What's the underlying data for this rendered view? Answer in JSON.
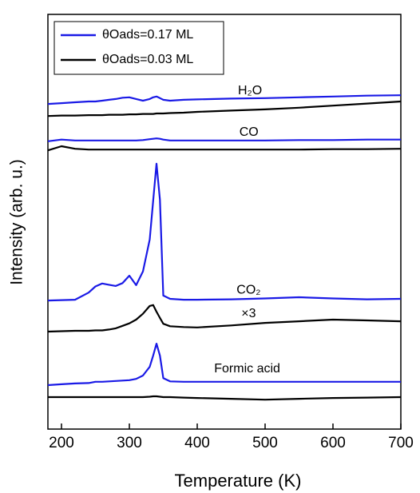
{
  "chart_data": {
    "type": "line",
    "xlabel": "Temperature (K)",
    "ylabel": "Intensity (arb. u.)",
    "x": [
      180,
      200,
      220,
      240,
      250,
      260,
      270,
      280,
      290,
      300,
      310,
      320,
      330,
      335,
      340,
      345,
      350,
      360,
      380,
      400,
      450,
      500,
      550,
      600,
      650,
      700
    ],
    "xlim": [
      180,
      700
    ],
    "xticks": [
      200,
      300,
      400,
      500,
      600,
      700
    ],
    "ylim": [
      0,
      100
    ],
    "legend": "upper left",
    "series": [
      {
        "name": "θOads=0.17 ML",
        "color": "#1a1ae6",
        "values": [
          78.4,
          78.6,
          78.8,
          79.0,
          79.0,
          79.2,
          79.4,
          79.6,
          79.9,
          80.0,
          79.6,
          79.2,
          79.6,
          80.0,
          80.2,
          79.8,
          79.4,
          79.2,
          79.4,
          79.5,
          79.7,
          79.8,
          80.0,
          80.2,
          80.4,
          80.5
        ]
      },
      {
        "name": "θOads=0.03 ML",
        "color": "#000000",
        "values": [
          75.5,
          75.6,
          75.6,
          75.7,
          75.7,
          75.7,
          75.8,
          75.8,
          75.8,
          75.9,
          75.9,
          76.0,
          76.0,
          76.0,
          76.1,
          76.1,
          76.1,
          76.2,
          76.3,
          76.5,
          76.8,
          77.1,
          77.5,
          78.0,
          78.5,
          79.0
        ]
      },
      {
        "name": null,
        "color": "#1a1ae6",
        "values": [
          69.4,
          69.8,
          69.6,
          69.6,
          69.6,
          69.6,
          69.6,
          69.6,
          69.6,
          69.6,
          69.6,
          69.7,
          69.9,
          70.0,
          70.1,
          70.0,
          69.8,
          69.6,
          69.6,
          69.6,
          69.6,
          69.6,
          69.7,
          69.7,
          69.8,
          69.8
        ]
      },
      {
        "name": null,
        "color": "#000000",
        "values": [
          67.2,
          68.2,
          67.6,
          67.4,
          67.4,
          67.4,
          67.4,
          67.4,
          67.4,
          67.4,
          67.4,
          67.4,
          67.4,
          67.4,
          67.4,
          67.4,
          67.4,
          67.4,
          67.4,
          67.4,
          67.4,
          67.4,
          67.4,
          67.5,
          67.5,
          67.6
        ]
      },
      {
        "name": null,
        "color": "#1a1ae6",
        "values": [
          31.0,
          31.1,
          31.2,
          32.9,
          34.4,
          35.1,
          34.8,
          34.5,
          35.2,
          37.0,
          34.7,
          38.0,
          45.7,
          55.0,
          64.0,
          55.3,
          32.2,
          31.4,
          31.2,
          31.2,
          31.3,
          31.5,
          31.8,
          31.5,
          31.3,
          31.4
        ]
      },
      {
        "name": null,
        "color": "#000000",
        "values": [
          23.5,
          23.6,
          23.7,
          23.7,
          23.8,
          23.8,
          24.0,
          24.3,
          24.9,
          25.5,
          26.4,
          27.8,
          29.7,
          29.9,
          28.3,
          26.8,
          25.4,
          24.8,
          24.6,
          24.5,
          25.0,
          25.6,
          26.0,
          26.4,
          26.2,
          26.0
        ]
      },
      {
        "name": null,
        "color": "#1a1ae6",
        "values": [
          10.6,
          10.8,
          11.0,
          11.1,
          11.4,
          11.4,
          11.5,
          11.6,
          11.7,
          11.8,
          12.1,
          12.9,
          15.0,
          17.7,
          20.6,
          17.7,
          12.3,
          11.5,
          11.4,
          11.4,
          11.4,
          11.4,
          11.4,
          11.4,
          11.4,
          11.4
        ]
      },
      {
        "name": null,
        "color": "#000000",
        "values": [
          7.7,
          7.7,
          7.7,
          7.7,
          7.7,
          7.7,
          7.7,
          7.7,
          7.7,
          7.7,
          7.7,
          7.7,
          7.8,
          7.9,
          7.9,
          7.8,
          7.7,
          7.7,
          7.6,
          7.5,
          7.3,
          7.1,
          7.3,
          7.5,
          7.6,
          7.7
        ]
      }
    ],
    "annotations": [
      {
        "text": "H₂O",
        "x": 460,
        "y": 81.5
      },
      {
        "text": "CO",
        "x": 462,
        "y": 71.5
      },
      {
        "text": "CO₂",
        "x": 458,
        "y": 33.5
      },
      {
        "text": "×3",
        "x": 465,
        "y": 27.8
      },
      {
        "text": "Formic acid",
        "x": 425,
        "y": 14.5
      }
    ]
  }
}
